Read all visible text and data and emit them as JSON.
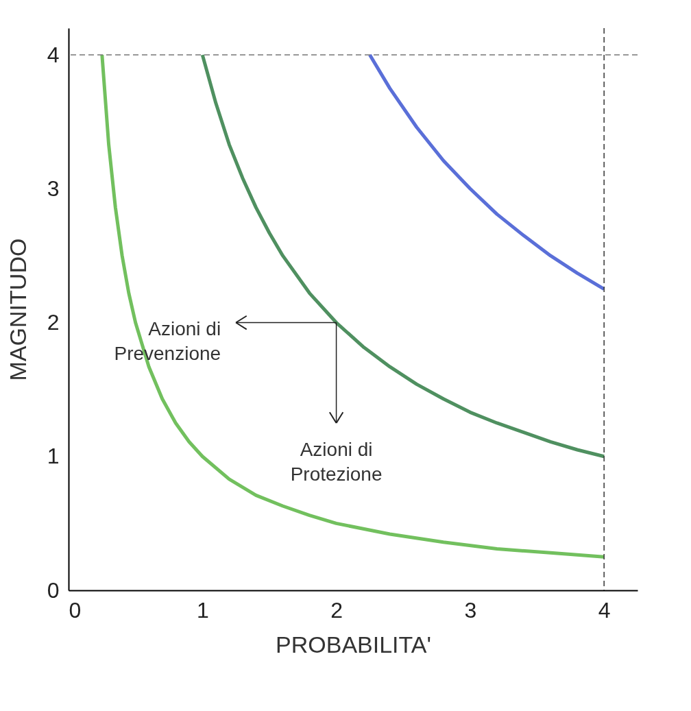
{
  "chart_data": {
    "type": "line",
    "xlabel": "PROBABILITA'",
    "ylabel": "MAGNITUDO",
    "xlim": [
      0,
      4.25
    ],
    "ylim": [
      0,
      4.2
    ],
    "xticks": [
      0,
      1,
      2,
      3,
      4
    ],
    "yticks": [
      0,
      1,
      2,
      3,
      4
    ],
    "grid": false,
    "marker": "none",
    "line_style": "solid",
    "series": [
      {
        "color": "#72c05e",
        "x": [
          0.25,
          0.3,
          0.35,
          0.4,
          0.45,
          0.5,
          0.6,
          0.7,
          0.8,
          0.9,
          1,
          1.2,
          1.4,
          1.6,
          1.8,
          2,
          2.4,
          2.8,
          3.2,
          3.6,
          4
        ],
        "values": [
          4,
          3.33,
          2.86,
          2.5,
          2.22,
          2,
          1.67,
          1.43,
          1.25,
          1.11,
          1,
          0.83,
          0.71,
          0.63,
          0.56,
          0.5,
          0.42,
          0.36,
          0.31,
          0.28,
          0.25
        ]
      },
      {
        "color": "#4f9060",
        "x": [
          1,
          1.1,
          1.2,
          1.3,
          1.4,
          1.5,
          1.6,
          1.8,
          2,
          2.2,
          2.4,
          2.6,
          2.8,
          3,
          3.2,
          3.4,
          3.6,
          3.8,
          4
        ],
        "values": [
          4,
          3.64,
          3.33,
          3.08,
          2.86,
          2.67,
          2.5,
          2.22,
          2,
          1.82,
          1.67,
          1.54,
          1.43,
          1.33,
          1.25,
          1.18,
          1.11,
          1.05,
          1
        ]
      },
      {
        "color": "#5a6fd8",
        "x": [
          2.25,
          2.4,
          2.6,
          2.8,
          3,
          3.2,
          3.4,
          3.6,
          3.8,
          4
        ],
        "values": [
          4,
          3.75,
          3.46,
          3.21,
          3,
          2.81,
          2.65,
          2.5,
          2.37,
          2.25
        ]
      }
    ],
    "ref_lines": [
      {
        "axis": "y",
        "value": 4,
        "color": "#777777",
        "line_style": "dashed"
      },
      {
        "axis": "x",
        "value": 4,
        "color": "#333333",
        "line_style": "dashed"
      }
    ],
    "annotations": [
      {
        "text": "Azioni di\nPrevenzione",
        "x": 2,
        "y": 2
      },
      {
        "text": "Azioni di\nProtezione",
        "x": 2,
        "y": 2
      }
    ]
  }
}
